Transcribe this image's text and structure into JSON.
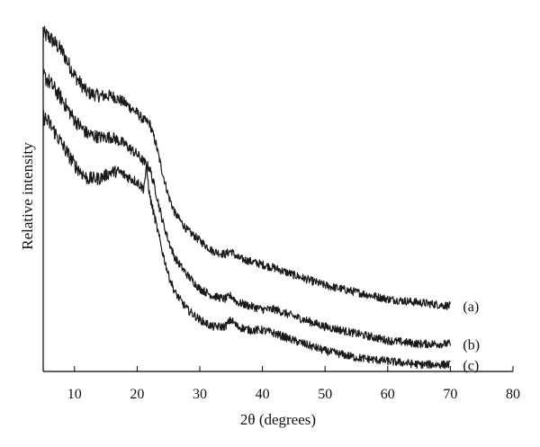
{
  "chart_data": {
    "type": "line",
    "title": "",
    "xlabel": "2θ (degrees)",
    "ylabel": "Relative intensity",
    "xlim": [
      5,
      80
    ],
    "ylim": [
      0,
      1
    ],
    "xticks": [
      "10",
      "20",
      "30",
      "40",
      "50",
      "60",
      "70",
      "80"
    ],
    "yticks": [],
    "grid": false,
    "series": [
      {
        "name": "(a)",
        "x": [
          5,
          6,
          8,
          10,
          12,
          14,
          16,
          18,
          20,
          21,
          22,
          23,
          24,
          25,
          26,
          28,
          30,
          32,
          34,
          35,
          36,
          38,
          40,
          42,
          45,
          50,
          55,
          60,
          65,
          70
        ],
        "y": [
          0.98,
          0.97,
          0.93,
          0.86,
          0.81,
          0.8,
          0.8,
          0.78,
          0.75,
          0.73,
          0.72,
          0.66,
          0.58,
          0.51,
          0.46,
          0.41,
          0.38,
          0.35,
          0.34,
          0.35,
          0.33,
          0.32,
          0.31,
          0.3,
          0.28,
          0.25,
          0.23,
          0.21,
          0.2,
          0.19
        ]
      },
      {
        "name": "(b)",
        "x": [
          5,
          6,
          8,
          10,
          12,
          14,
          16,
          18,
          20,
          21,
          22,
          23,
          24,
          25,
          26,
          28,
          30,
          32,
          34,
          35,
          36,
          38,
          40,
          42,
          45,
          50,
          55,
          60,
          65,
          70
        ],
        "y": [
          0.86,
          0.84,
          0.79,
          0.73,
          0.69,
          0.68,
          0.68,
          0.66,
          0.63,
          0.61,
          0.59,
          0.52,
          0.44,
          0.38,
          0.33,
          0.28,
          0.24,
          0.22,
          0.21,
          0.22,
          0.2,
          0.19,
          0.18,
          0.18,
          0.16,
          0.13,
          0.11,
          0.09,
          0.08,
          0.08
        ]
      },
      {
        "name": "(c)",
        "x": [
          5,
          6,
          8,
          10,
          12,
          14,
          16,
          17,
          18,
          20,
          21,
          21.5,
          22,
          23,
          24,
          25,
          26,
          28,
          30,
          32,
          34,
          35,
          36,
          38,
          40,
          42,
          45,
          50,
          55,
          60,
          65,
          70
        ],
        "y": [
          0.74,
          0.72,
          0.66,
          0.6,
          0.56,
          0.56,
          0.58,
          0.58,
          0.57,
          0.55,
          0.53,
          0.59,
          0.51,
          0.43,
          0.35,
          0.28,
          0.23,
          0.18,
          0.15,
          0.13,
          0.13,
          0.15,
          0.13,
          0.12,
          0.12,
          0.11,
          0.09,
          0.06,
          0.04,
          0.03,
          0.02,
          0.02
        ]
      }
    ]
  }
}
